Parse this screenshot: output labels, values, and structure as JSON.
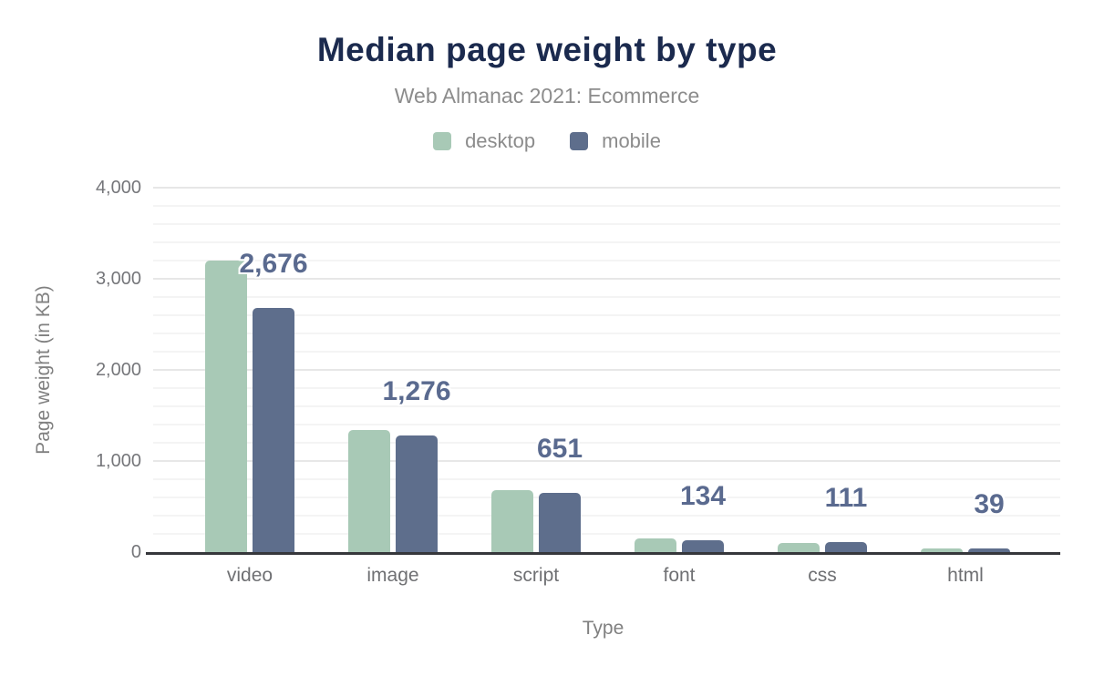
{
  "header": {
    "title": "Median page weight by type",
    "subtitle": "Web Almanac 2021: Ecommerce"
  },
  "legend": {
    "items": [
      {
        "label": "desktop",
        "color": "#a8c9b6"
      },
      {
        "label": "mobile",
        "color": "#5e6e8c"
      }
    ]
  },
  "axes": {
    "x_title": "Type",
    "y_title": "Page weight (in KB)"
  },
  "chart_data": {
    "type": "bar",
    "title": "Median page weight by type",
    "subtitle": "Web Almanac 2021: Ecommerce",
    "xlabel": "Type",
    "ylabel": "Page weight (in KB)",
    "categories": [
      "video",
      "image",
      "script",
      "font",
      "css",
      "html"
    ],
    "series": [
      {
        "name": "desktop",
        "color": "#a8c9b6",
        "values": [
          3200,
          1345,
          680,
          150,
          104,
          45
        ],
        "values_note": "estimated from bar heights; not labeled in chart"
      },
      {
        "name": "mobile",
        "color": "#5e6e8c",
        "values": [
          2676,
          1276,
          651,
          134,
          111,
          39
        ],
        "data_labels": [
          "2,676",
          "1,276",
          "651",
          "134",
          "111",
          "39"
        ]
      }
    ],
    "ylim": [
      0,
      4000
    ],
    "ytick_interval": 1000,
    "minor_gridline_interval": 200,
    "yticks": [
      {
        "value": 0,
        "label": "0"
      },
      {
        "value": 1000,
        "label": "1,000"
      },
      {
        "value": 2000,
        "label": "2,000"
      },
      {
        "value": 3000,
        "label": "3,000"
      },
      {
        "value": 4000,
        "label": "4,000"
      }
    ],
    "grid": true,
    "legend_position": "top",
    "value_label_color": "#5a6a8f",
    "title_color": "#1b2a4e",
    "axis_text_color": "#75767a"
  }
}
